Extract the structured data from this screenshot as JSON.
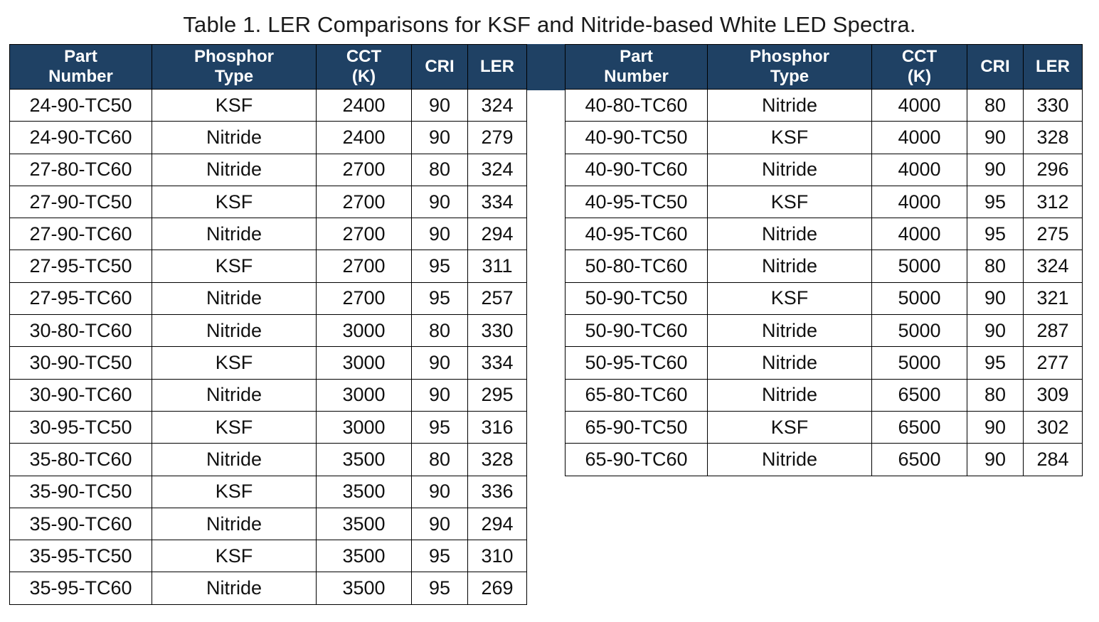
{
  "title": "Table 1. LER Comparisons for KSF and Nitride-based White LED Spectra.",
  "colors": {
    "header_bg": "#1F4164",
    "header_text": "#FFFFFF",
    "border": "#000000",
    "cell_text": "#111111",
    "title_text": "#1A1A1A",
    "row_bg": "#FFFFFF"
  },
  "columns": [
    "Part\nNumber",
    "Phosphor\nType",
    "CCT\n(K)",
    "CRI",
    "LER"
  ],
  "tables": {
    "left": {
      "rows": [
        [
          "24-90-TC50",
          "KSF",
          "2400",
          "90",
          "324"
        ],
        [
          "24-90-TC60",
          "Nitride",
          "2400",
          "90",
          "279"
        ],
        [
          "27-80-TC60",
          "Nitride",
          "2700",
          "80",
          "324"
        ],
        [
          "27-90-TC50",
          "KSF",
          "2700",
          "90",
          "334"
        ],
        [
          "27-90-TC60",
          "Nitride",
          "2700",
          "90",
          "294"
        ],
        [
          "27-95-TC50",
          "KSF",
          "2700",
          "95",
          "311"
        ],
        [
          "27-95-TC60",
          "Nitride",
          "2700",
          "95",
          "257"
        ],
        [
          "30-80-TC60",
          "Nitride",
          "3000",
          "80",
          "330"
        ],
        [
          "30-90-TC50",
          "KSF",
          "3000",
          "90",
          "334"
        ],
        [
          "30-90-TC60",
          "Nitride",
          "3000",
          "90",
          "295"
        ],
        [
          "30-95-TC50",
          "KSF",
          "3000",
          "95",
          "316"
        ],
        [
          "35-80-TC60",
          "Nitride",
          "3500",
          "80",
          "328"
        ],
        [
          "35-90-TC50",
          "KSF",
          "3500",
          "90",
          "336"
        ],
        [
          "35-90-TC60",
          "Nitride",
          "3500",
          "90",
          "294"
        ],
        [
          "35-95-TC50",
          "KSF",
          "3500",
          "95",
          "310"
        ],
        [
          "35-95-TC60",
          "Nitride",
          "3500",
          "95",
          "269"
        ]
      ]
    },
    "right": {
      "rows": [
        [
          "40-80-TC60",
          "Nitride",
          "4000",
          "80",
          "330"
        ],
        [
          "40-90-TC50",
          "KSF",
          "4000",
          "90",
          "328"
        ],
        [
          "40-90-TC60",
          "Nitride",
          "4000",
          "90",
          "296"
        ],
        [
          "40-95-TC50",
          "KSF",
          "4000",
          "95",
          "312"
        ],
        [
          "40-95-TC60",
          "Nitride",
          "4000",
          "95",
          "275"
        ],
        [
          "50-80-TC60",
          "Nitride",
          "5000",
          "80",
          "324"
        ],
        [
          "50-90-TC50",
          "KSF",
          "5000",
          "90",
          "321"
        ],
        [
          "50-90-TC60",
          "Nitride",
          "5000",
          "90",
          "287"
        ],
        [
          "50-95-TC60",
          "Nitride",
          "5000",
          "95",
          "277"
        ],
        [
          "65-80-TC60",
          "Nitride",
          "6500",
          "80",
          "309"
        ],
        [
          "65-90-TC50",
          "KSF",
          "6500",
          "90",
          "302"
        ],
        [
          "65-90-TC60",
          "Nitride",
          "6500",
          "90",
          "284"
        ]
      ]
    }
  }
}
